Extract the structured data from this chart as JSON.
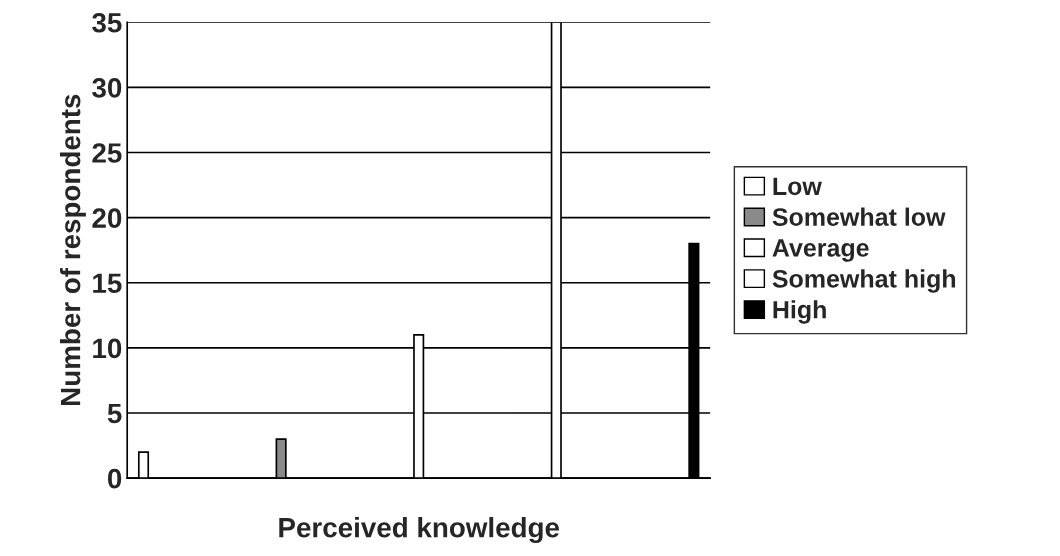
{
  "chart_data": {
    "type": "bar",
    "xlabel": "Perceived knowledge",
    "ylabel": "Number of respondents",
    "categories": [
      null,
      null,
      null,
      null,
      null
    ],
    "series": [
      {
        "name": "Low",
        "color": "#ffffff",
        "values": [
          2,
          null,
          null,
          null,
          null
        ]
      },
      {
        "name": "Somewhat low",
        "color": "#8a8a8a",
        "values": [
          null,
          3,
          null,
          null,
          null
        ]
      },
      {
        "name": "Average",
        "color": "#ffffff",
        "values": [
          null,
          null,
          11,
          null,
          null
        ]
      },
      {
        "name": "Somewhat high",
        "color": "#ffffff",
        "values": [
          null,
          null,
          null,
          35,
          null
        ]
      },
      {
        "name": "High",
        "color": "#000000",
        "values": [
          null,
          null,
          null,
          null,
          18
        ]
      }
    ],
    "ylim": [
      0,
      35
    ],
    "yticks": [
      0,
      5,
      10,
      15,
      20,
      25,
      30,
      35
    ],
    "grid": "y",
    "legend": "right",
    "tick_labels": "y"
  }
}
